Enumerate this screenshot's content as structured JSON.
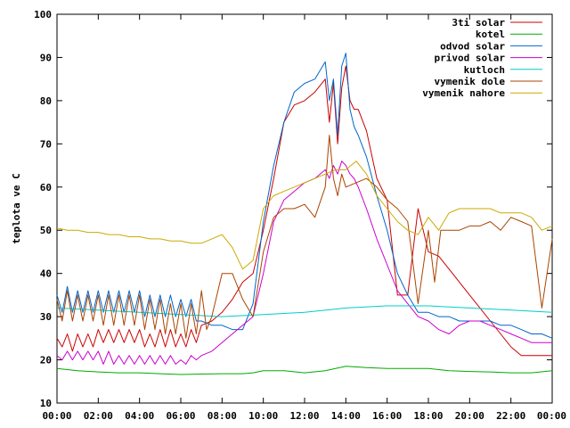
{
  "chart_data": {
    "type": "line",
    "xlabel": "",
    "ylabel": "teplota ve C",
    "xlim": [
      0,
      24
    ],
    "ylim": [
      10,
      100
    ],
    "grid": false,
    "legend_position": "top-right",
    "x_tick_labels": [
      "00:00",
      "02:00",
      "04:00",
      "06:00",
      "08:00",
      "10:00",
      "12:00",
      "14:00",
      "16:00",
      "18:00",
      "20:00",
      "22:00",
      "00:00"
    ],
    "y_tick_labels": [
      "10",
      "20",
      "30",
      "40",
      "50",
      "60",
      "70",
      "80",
      "90",
      "100"
    ],
    "series": [
      {
        "name": "3ti solar",
        "color": "#cc0000",
        "x": [
          0,
          0.25,
          0.5,
          0.75,
          1,
          1.25,
          1.5,
          1.75,
          2,
          2.25,
          2.5,
          2.75,
          3,
          3.25,
          3.5,
          3.75,
          4,
          4.25,
          4.5,
          4.75,
          5,
          5.25,
          5.5,
          5.75,
          6,
          6.25,
          6.5,
          6.75,
          7,
          7.5,
          8,
          8.5,
          9,
          9.5,
          10,
          10.5,
          11,
          11.5,
          12,
          12.5,
          13,
          13.2,
          13.4,
          13.6,
          13.8,
          14,
          14.2,
          14.4,
          14.6,
          15,
          15.5,
          16,
          16.5,
          17,
          17.5,
          18,
          18.5,
          19,
          19.5,
          20,
          20.5,
          21,
          21.5,
          22,
          22.5,
          23,
          23.5,
          24
        ],
        "y": [
          25,
          23,
          26,
          22,
          26,
          23,
          26,
          23,
          27,
          24,
          27,
          24,
          27,
          24,
          27,
          24,
          27,
          23,
          26,
          23,
          27,
          23,
          27,
          23,
          26,
          23,
          27,
          24,
          28,
          29,
          31,
          34,
          38,
          40,
          50,
          62,
          75,
          79,
          80,
          82,
          85,
          75,
          84,
          70,
          83,
          88,
          80,
          78,
          78,
          73,
          62,
          57,
          35,
          35,
          55,
          45,
          44,
          41,
          38,
          35,
          32,
          29,
          26,
          23,
          21,
          21,
          21,
          21
        ]
      },
      {
        "name": "kotel",
        "color": "#00aa00",
        "x": [
          0,
          1,
          2,
          3,
          4,
          5,
          6,
          7,
          8,
          9,
          9.5,
          10,
          11,
          12,
          13,
          14,
          15,
          16,
          17,
          18,
          19,
          20,
          21,
          22,
          23,
          24
        ],
        "y": [
          18,
          17.5,
          17.2,
          17,
          17,
          16.8,
          16.6,
          16.7,
          16.8,
          16.8,
          17,
          17.5,
          17.5,
          17,
          17.5,
          18.5,
          18.2,
          18,
          18,
          18,
          17.5,
          17.3,
          17.2,
          17,
          17,
          17.5
        ]
      },
      {
        "name": "odvod solar",
        "color": "#0066cc",
        "x": [
          0,
          0.25,
          0.5,
          0.75,
          1,
          1.25,
          1.5,
          1.75,
          2,
          2.25,
          2.5,
          2.75,
          3,
          3.25,
          3.5,
          3.75,
          4,
          4.25,
          4.5,
          4.75,
          5,
          5.25,
          5.5,
          5.75,
          6,
          6.25,
          6.5,
          6.75,
          7,
          7.5,
          8,
          8.5,
          9,
          9.5,
          10,
          10.5,
          11,
          11.5,
          12,
          12.5,
          13,
          13.2,
          13.4,
          13.6,
          13.8,
          14,
          14.2,
          14.4,
          14.6,
          15,
          15.5,
          16,
          16.5,
          17,
          17.5,
          18,
          18.5,
          19,
          19.5,
          20,
          20.5,
          21,
          21.5,
          22,
          22.5,
          23,
          23.5,
          24
        ],
        "y": [
          35,
          31,
          37,
          31,
          36,
          31,
          36,
          31,
          36,
          31,
          36,
          31,
          36,
          31,
          36,
          31,
          36,
          30,
          35,
          30,
          35,
          30,
          35,
          30,
          34,
          30,
          34,
          29,
          29,
          28,
          28,
          27,
          27,
          33,
          52,
          65,
          75,
          82,
          84,
          85,
          89,
          80,
          85,
          72,
          88,
          91,
          78,
          74,
          72,
          67,
          58,
          50,
          40,
          35,
          31,
          31,
          30,
          30,
          29,
          29,
          29,
          29,
          28,
          28,
          27,
          26,
          26,
          25
        ]
      },
      {
        "name": "privod solar",
        "color": "#cc00cc",
        "x": [
          0,
          0.25,
          0.5,
          0.75,
          1,
          1.25,
          1.5,
          1.75,
          2,
          2.25,
          2.5,
          2.75,
          3,
          3.25,
          3.5,
          3.75,
          4,
          4.25,
          4.5,
          4.75,
          5,
          5.25,
          5.5,
          5.75,
          6,
          6.25,
          6.5,
          6.75,
          7,
          7.5,
          8,
          8.5,
          9,
          9.5,
          10,
          10.5,
          11,
          11.5,
          12,
          12.5,
          13,
          13.2,
          13.4,
          13.6,
          13.8,
          14,
          14.2,
          14.4,
          14.6,
          15,
          15.5,
          16,
          16.5,
          17,
          17.5,
          18,
          18.5,
          19,
          19.5,
          20,
          20.5,
          21,
          21.5,
          22,
          22.5,
          23,
          23.5,
          24
        ],
        "y": [
          21,
          20,
          22,
          20,
          22,
          20,
          22,
          20,
          22,
          19,
          22,
          19,
          21,
          19,
          21,
          19,
          21,
          19,
          21,
          19,
          21,
          19,
          21,
          19,
          20,
          19,
          21,
          20,
          21,
          22,
          24,
          26,
          28,
          30,
          40,
          52,
          57,
          59,
          61,
          62,
          64,
          62,
          65,
          63,
          66,
          65,
          63,
          62,
          60,
          55,
          48,
          42,
          36,
          33,
          30,
          29,
          27,
          26,
          28,
          29,
          29,
          28,
          27,
          26,
          25,
          24,
          24,
          24
        ]
      },
      {
        "name": "kutloch",
        "color": "#00cccc",
        "x": [
          0,
          2,
          4,
          6,
          8,
          10,
          12,
          14,
          16,
          17,
          18,
          20,
          22,
          24
        ],
        "y": [
          32,
          31.5,
          31,
          30.5,
          30,
          30.5,
          31,
          32,
          32.5,
          32.5,
          32.5,
          32,
          31.5,
          31
        ]
      },
      {
        "name": "vymenik dole",
        "color": "#aa4400",
        "x": [
          0,
          0.25,
          0.5,
          0.75,
          1,
          1.25,
          1.5,
          1.75,
          2,
          2.25,
          2.5,
          2.75,
          3,
          3.25,
          3.5,
          3.75,
          4,
          4.25,
          4.5,
          4.75,
          5,
          5.25,
          5.5,
          5.75,
          6,
          6.25,
          6.5,
          6.75,
          7,
          7.25,
          7.5,
          8,
          8.5,
          9,
          9.5,
          10,
          10.5,
          11,
          11.5,
          12,
          12.5,
          13,
          13.2,
          13.4,
          13.6,
          13.8,
          14,
          14.5,
          15,
          15.5,
          16,
          16.5,
          17,
          17.5,
          18,
          18.3,
          18.6,
          19,
          19.5,
          20,
          20.5,
          21,
          21.5,
          22,
          22.5,
          23,
          23.5,
          24
        ],
        "y": [
          34,
          29,
          36,
          29,
          35,
          29,
          35,
          29,
          35,
          28,
          35,
          28,
          35,
          28,
          35,
          28,
          35,
          27,
          34,
          27,
          34,
          26,
          33,
          26,
          33,
          25,
          33,
          26,
          36,
          27,
          30,
          40,
          40,
          34,
          30,
          45,
          53,
          55,
          55,
          56,
          53,
          60,
          72,
          62,
          58,
          63,
          60,
          61,
          62,
          60,
          57,
          55,
          52,
          33,
          50,
          38,
          50,
          50,
          50,
          51,
          51,
          52,
          50,
          53,
          52,
          51,
          32,
          48
        ]
      },
      {
        "name": "vymenik nahore",
        "color": "#ccaa00",
        "x": [
          0,
          0.5,
          1,
          1.5,
          2,
          2.5,
          3,
          3.5,
          4,
          4.5,
          5,
          5.5,
          6,
          6.5,
          7,
          7.5,
          8,
          8.5,
          9,
          9.5,
          10,
          10.5,
          11,
          11.5,
          12,
          12.5,
          13,
          13.5,
          14,
          14.5,
          15,
          15.5,
          16,
          16.5,
          17,
          17.5,
          18,
          18.5,
          19,
          19.5,
          20,
          20.5,
          21,
          21.5,
          22,
          22.5,
          23,
          23.5,
          24
        ],
        "y": [
          50.5,
          50,
          50,
          49.5,
          49.5,
          49,
          49,
          48.5,
          48.5,
          48,
          48,
          47.5,
          47.5,
          47,
          47,
          48,
          49,
          46,
          41,
          43,
          55,
          58,
          59,
          60,
          61,
          62,
          63,
          64,
          64,
          66,
          63,
          58,
          55,
          52,
          50,
          49,
          53,
          50,
          54,
          55,
          55,
          55,
          55,
          54,
          54,
          54,
          53,
          50,
          51
        ]
      }
    ]
  }
}
